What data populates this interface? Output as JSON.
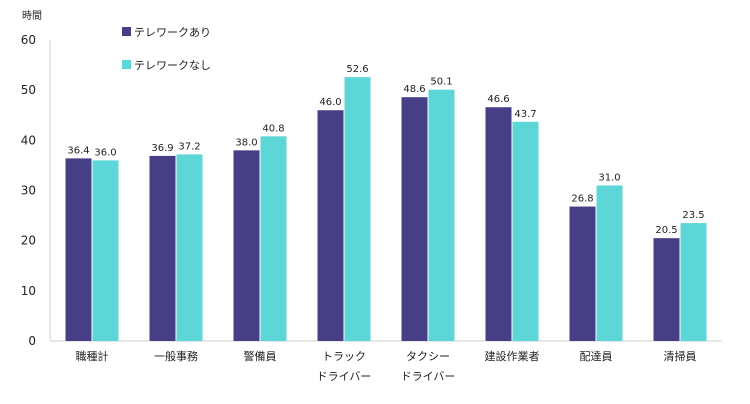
{
  "chart_data": {
    "type": "bar",
    "unit_label": "時間",
    "ylim": [
      0,
      60
    ],
    "yticks": [
      0,
      10,
      20,
      30,
      40,
      50,
      60
    ],
    "grid": false,
    "legend_position": "top-left",
    "categories": [
      [
        "職種計"
      ],
      [
        "一般事務"
      ],
      [
        "警備員"
      ],
      [
        "トラック",
        "ドライバー"
      ],
      [
        "タクシー",
        "ドライバー"
      ],
      [
        "建設作業者"
      ],
      [
        "配達員"
      ],
      [
        "清掃員"
      ]
    ],
    "series": [
      {
        "name": "テレワークあり",
        "color": "#463f85",
        "values": [
          36.4,
          36.9,
          38.0,
          46.0,
          48.6,
          46.6,
          26.8,
          20.5
        ],
        "labels": [
          "36.4",
          "36.9",
          "38.0",
          "46.0",
          "48.6",
          "46.6",
          "26.8",
          "20.5"
        ]
      },
      {
        "name": "テレワークなし",
        "color": "#5cd6d6",
        "values": [
          36.0,
          37.2,
          40.8,
          52.6,
          50.1,
          43.7,
          31.0,
          23.5
        ],
        "labels": [
          "36.0",
          "37.2",
          "40.8",
          "52.6",
          "50.1",
          "43.7",
          "31.0",
          "23.5"
        ]
      }
    ]
  }
}
